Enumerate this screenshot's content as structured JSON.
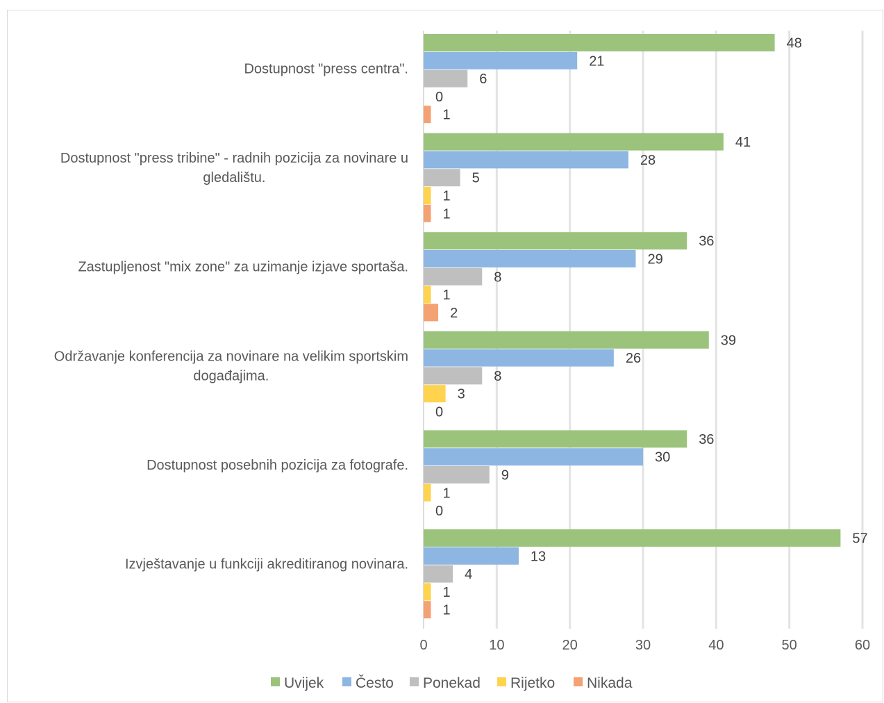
{
  "chart_data": {
    "type": "bar",
    "orientation": "horizontal",
    "categories": [
      [
        "Dostupnost \"press centra\"."
      ],
      [
        "Dostupnost \"press tribine\" - radnih pozicija za novinare u",
        "gledalištu."
      ],
      [
        "Zastupljenost \"mix zone\" za uzimanje izjave sportaša."
      ],
      [
        "Održavanje konferencija za novinare na velikim sportskim",
        "događajima."
      ],
      [
        "Dostupnost posebnih pozicija za fotografe."
      ],
      [
        "Izvještavanje u funkciji akreditiranog novinara."
      ]
    ],
    "series": [
      {
        "name": "Uvijek",
        "color": "#9BC37C",
        "values": [
          48,
          41,
          36,
          39,
          36,
          57
        ]
      },
      {
        "name": "Često",
        "color": "#8DB6E2",
        "values": [
          21,
          28,
          29,
          26,
          30,
          13
        ]
      },
      {
        "name": "Ponekad",
        "color": "#BFBFBF",
        "values": [
          6,
          5,
          8,
          8,
          9,
          4
        ]
      },
      {
        "name": "Rijetko",
        "color": "#FFD34D",
        "values": [
          0,
          1,
          1,
          3,
          1,
          1
        ]
      },
      {
        "name": "Nikada",
        "color": "#F4A173",
        "values": [
          1,
          1,
          2,
          0,
          0,
          1
        ]
      }
    ],
    "xlim": [
      0,
      60
    ],
    "xticks": [
      0,
      10,
      20,
      30,
      40,
      50,
      60
    ],
    "grid": true,
    "legend_position": "bottom",
    "title": "",
    "xlabel": "",
    "ylabel": ""
  }
}
